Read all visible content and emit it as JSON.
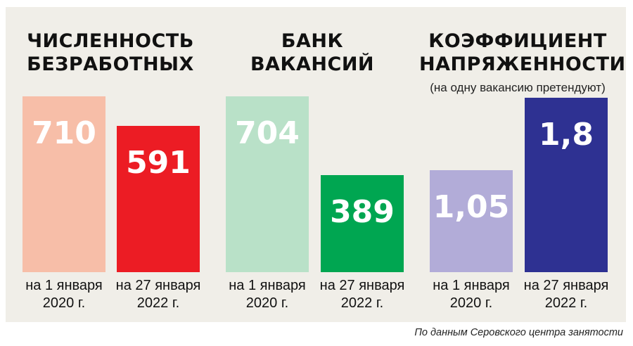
{
  "chart_data": [
    {
      "type": "bar",
      "title": "ЧИСЛЕННОСТЬ БЕЗРАБОТНЫХ",
      "subtitle": "",
      "categories": [
        "на 1 января\n2020 г.",
        "на 27 января\n2022 г."
      ],
      "values": [
        710,
        591
      ],
      "value_labels": [
        "710",
        "591"
      ],
      "colors": [
        "#f7bea8",
        "#ec1c24"
      ]
    },
    {
      "type": "bar",
      "title": "БАНК ВАКАНСИЙ",
      "subtitle": "",
      "categories": [
        "на 1 января\n2020 г.",
        "на 27 января\n2022 г."
      ],
      "values": [
        704,
        389
      ],
      "value_labels": [
        "704",
        "389"
      ],
      "colors": [
        "#b9e1c8",
        "#00a651"
      ]
    },
    {
      "type": "bar",
      "title": "КОЭФФИЦИЕНТ НАПРЯЖЕННОСТИ",
      "subtitle": "(на одну вакансию претендуют)",
      "categories": [
        "на 1 января\n2020 г.",
        "на 27 января\n2022 г."
      ],
      "values": [
        1.05,
        1.8
      ],
      "value_labels": [
        "1,05",
        "1,8"
      ],
      "colors": [
        "#b2acd8",
        "#2e3192"
      ]
    }
  ],
  "source": "По данным Серовского центра занятости"
}
